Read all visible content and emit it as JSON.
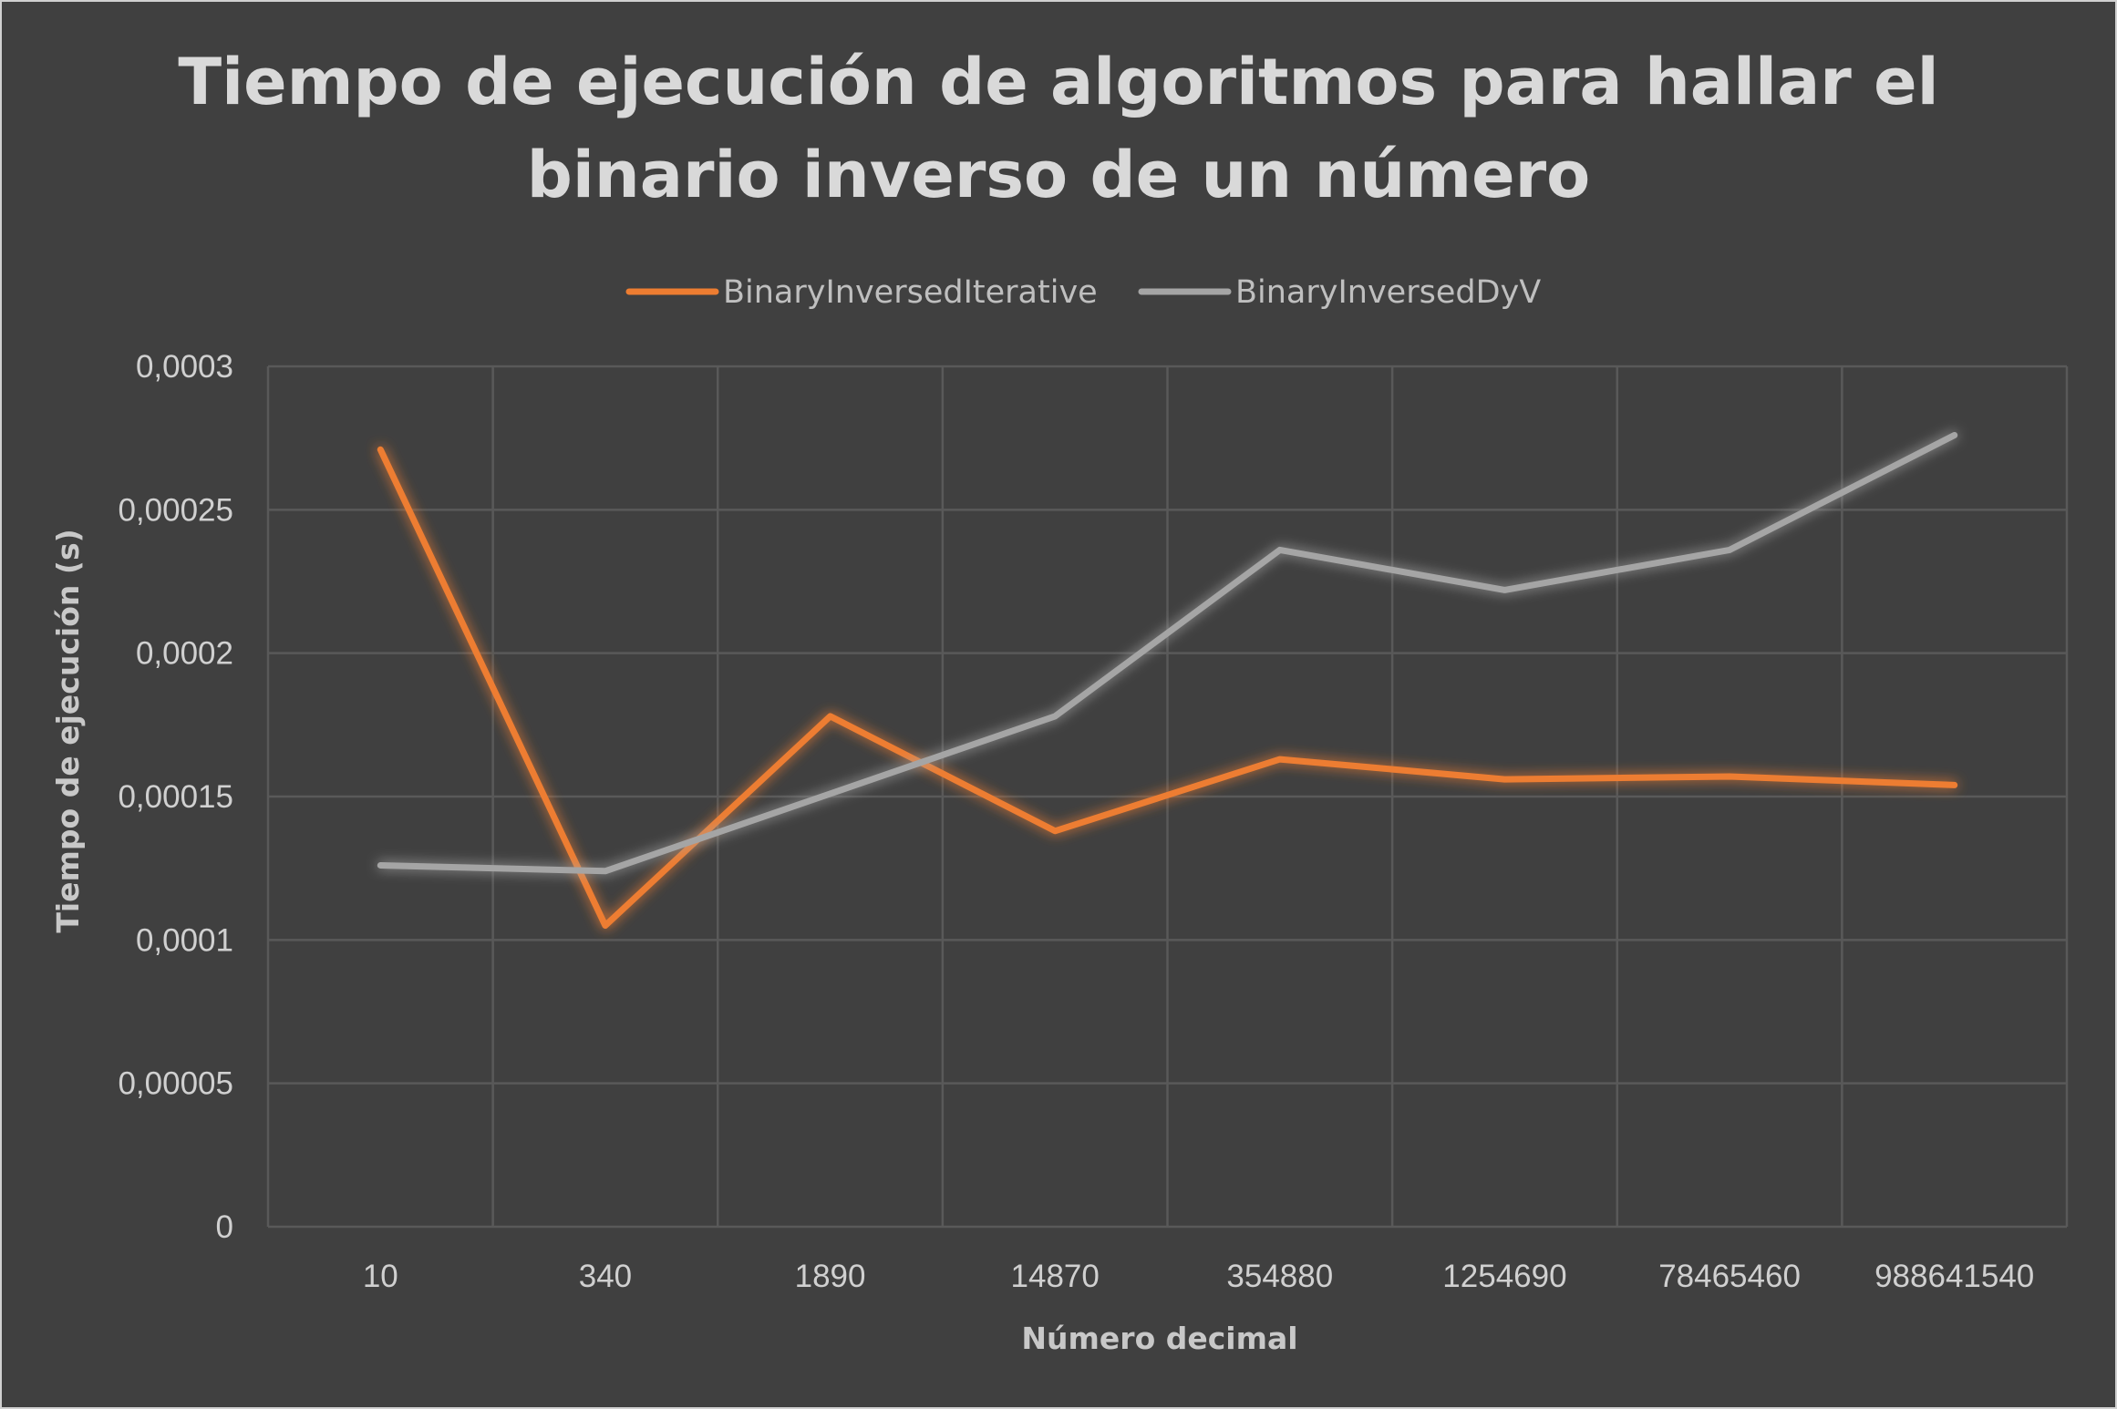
{
  "chart_data": {
    "type": "line",
    "title_lines": [
      "Tiempo de ejecución de algoritmos para hallar el",
      "binario inverso de un número"
    ],
    "xlabel": "Número decimal",
    "ylabel": "Tiempo de ejecución (s)",
    "categories": [
      "10",
      "340",
      "1890",
      "14870",
      "354880",
      "1254690",
      "78465460",
      "988641540"
    ],
    "ylim": [
      0,
      0.0003
    ],
    "yticks": [
      {
        "value": 0,
        "label": "0"
      },
      {
        "value": 5e-05,
        "label": "0,00005"
      },
      {
        "value": 0.0001,
        "label": "0,0001"
      },
      {
        "value": 0.00015,
        "label": "0,00015"
      },
      {
        "value": 0.0002,
        "label": "0,0002"
      },
      {
        "value": 0.00025,
        "label": "0,00025"
      },
      {
        "value": 0.0003,
        "label": "0,0003"
      }
    ],
    "grid": true,
    "legend_position": "top",
    "series": [
      {
        "name": "BinaryInversedIterative",
        "color": "#ed7d31",
        "values": [
          0.000271,
          0.000105,
          0.000178,
          0.000138,
          0.000163,
          0.000156,
          0.000157,
          0.000154
        ]
      },
      {
        "name": "BinaryInversedDyV",
        "color": "#a5a5a5",
        "values": [
          0.000126,
          0.000124,
          0.000151,
          0.000178,
          0.000236,
          0.000222,
          0.000236,
          0.000276
        ]
      }
    ]
  }
}
